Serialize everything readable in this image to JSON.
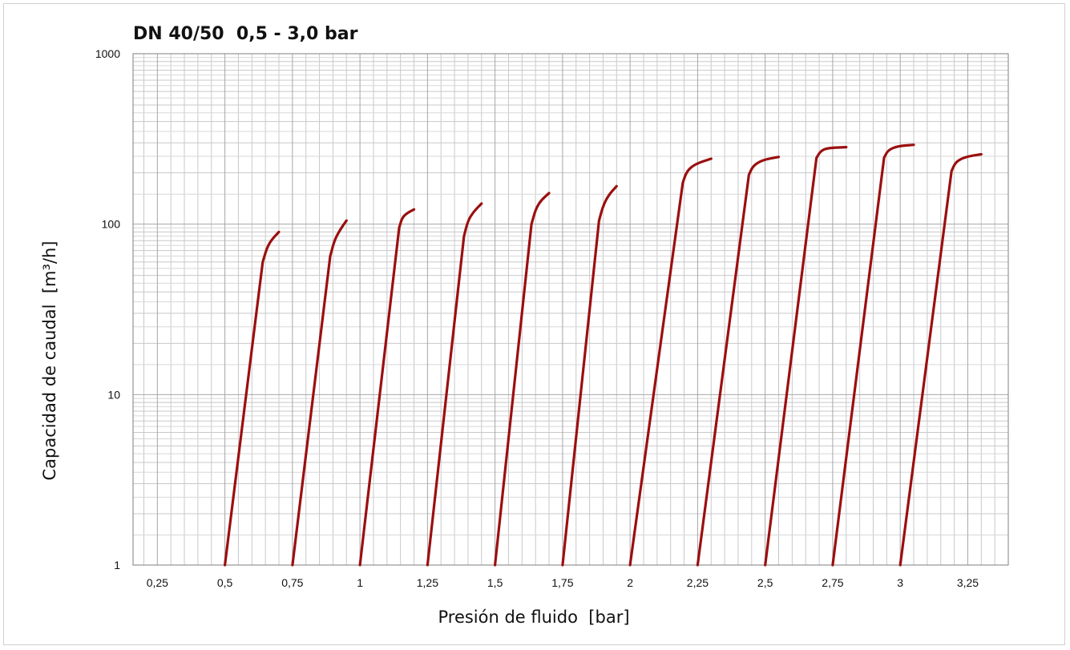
{
  "chart_data": {
    "type": "line",
    "title": "DN 40/50  0,5 - 3,0 bar",
    "xlabel": "Presión de fluido  [bar]",
    "ylabel": "Capacidad de caudal  [m³/h]",
    "xlim": [
      0.16,
      3.4
    ],
    "ylim": [
      1,
      1000
    ],
    "yscale": "log",
    "grid": true,
    "legend": "none",
    "x_ticks": [
      0.25,
      0.5,
      0.75,
      1,
      1.25,
      1.5,
      1.75,
      2,
      2.25,
      2.5,
      2.75,
      3,
      3.25
    ],
    "x_tick_labels": [
      "0,25",
      "0,5",
      "0,75",
      "1",
      "1,25",
      "1,5",
      "1,75",
      "2",
      "2,25",
      "2,5",
      "2,75",
      "3",
      "3,25"
    ],
    "y_tick_labels": [
      "1",
      "10",
      "100",
      "1000"
    ],
    "color": "#9b0f0f",
    "series": [
      {
        "x": [
          0.5,
          0.64,
          0.655,
          0.67,
          0.7
        ],
        "y": [
          1,
          60,
          72,
          80,
          90
        ]
      },
      {
        "x": [
          0.75,
          0.89,
          0.905,
          0.925,
          0.95
        ],
        "y": [
          1,
          65,
          80,
          92,
          105
        ]
      },
      {
        "x": [
          1.0,
          1.145,
          1.155,
          1.17,
          1.2
        ],
        "y": [
          1,
          95,
          108,
          115,
          122
        ]
      },
      {
        "x": [
          1.25,
          1.385,
          1.4,
          1.42,
          1.45
        ],
        "y": [
          1,
          85,
          105,
          118,
          132
        ]
      },
      {
        "x": [
          1.5,
          1.635,
          1.65,
          1.67,
          1.7
        ],
        "y": [
          1,
          100,
          122,
          138,
          152
        ]
      },
      {
        "x": [
          1.75,
          1.885,
          1.9,
          1.92,
          1.95
        ],
        "y": [
          1,
          105,
          128,
          148,
          167
        ]
      },
      {
        "x": [
          2.0,
          2.195,
          2.21,
          2.24,
          2.3
        ],
        "y": [
          1,
          175,
          205,
          225,
          242
        ]
      },
      {
        "x": [
          2.25,
          2.44,
          2.455,
          2.49,
          2.55
        ],
        "y": [
          1,
          195,
          220,
          238,
          248
        ]
      },
      {
        "x": [
          2.5,
          2.69,
          2.705,
          2.73,
          2.8
        ],
        "y": [
          1,
          245,
          268,
          280,
          283
        ]
      },
      {
        "x": [
          2.75,
          2.94,
          2.955,
          2.99,
          3.05
        ],
        "y": [
          1,
          245,
          272,
          287,
          292
        ]
      },
      {
        "x": [
          3.0,
          3.19,
          3.205,
          3.24,
          3.3
        ],
        "y": [
          1,
          205,
          232,
          248,
          257
        ]
      }
    ]
  }
}
